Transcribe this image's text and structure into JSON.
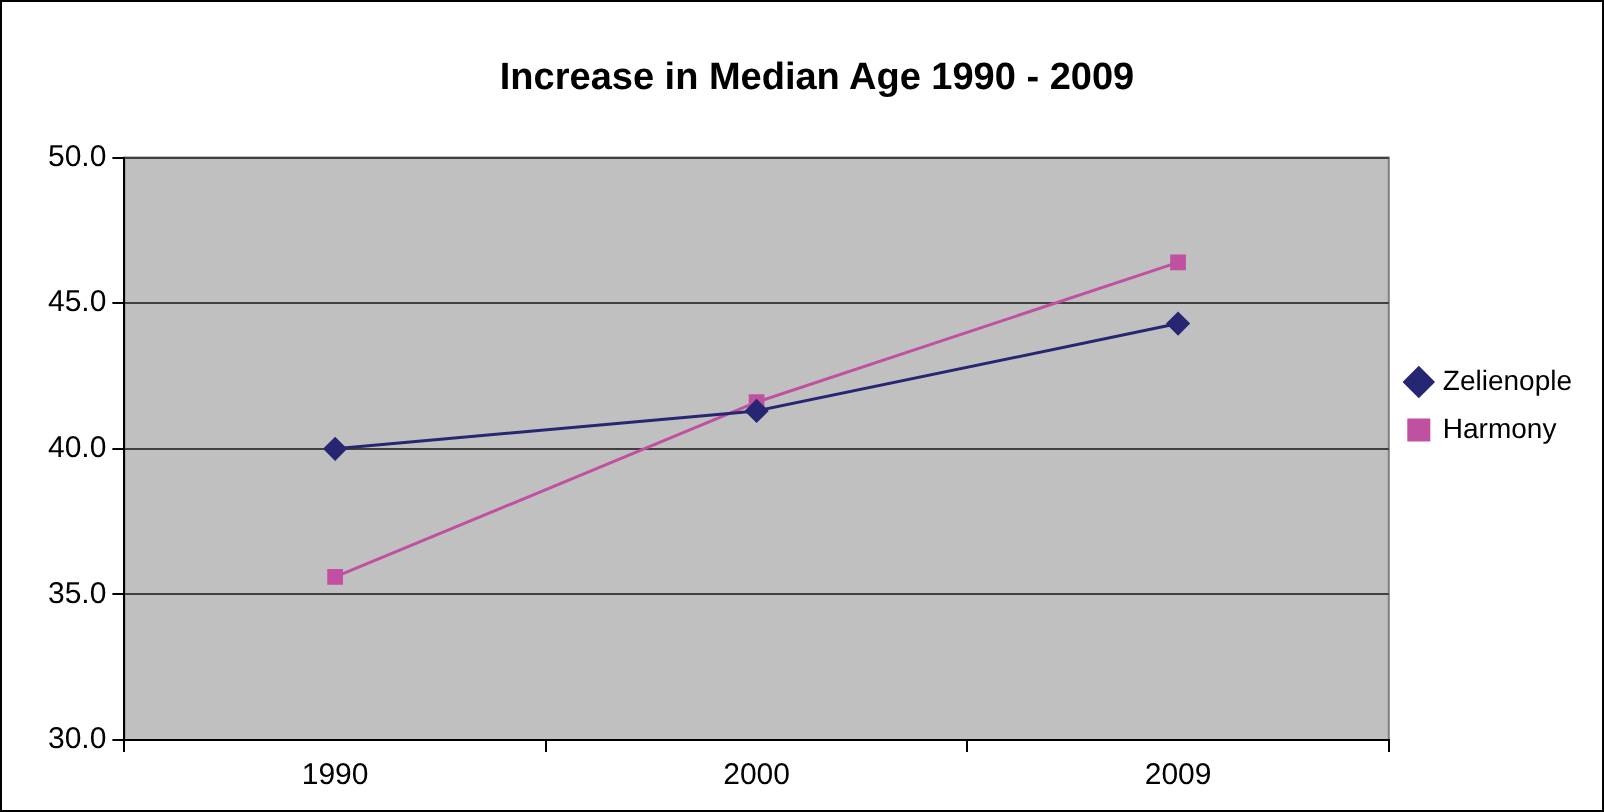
{
  "chart_data": {
    "type": "line",
    "title": "Increase in Median Age 1990 - 2009",
    "categories": [
      "1990",
      "2000",
      "2009"
    ],
    "series": [
      {
        "name": "Zelienople",
        "color": "#262673",
        "values": [
          40.0,
          41.3,
          44.3
        ],
        "marker": "diamond"
      },
      {
        "name": "Harmony",
        "color": "#c050a0",
        "values": [
          35.6,
          41.6,
          46.4
        ],
        "marker": "square"
      }
    ],
    "ylim": [
      30,
      50
    ],
    "yticks": [
      {
        "value": 30,
        "label": "30.0"
      },
      {
        "value": 35,
        "label": "35.0"
      },
      {
        "value": 40,
        "label": "40.0"
      },
      {
        "value": 45,
        "label": "45.0"
      },
      {
        "value": 50,
        "label": "50.0"
      }
    ],
    "grid": "y",
    "legend": "right",
    "line_style": "solid"
  }
}
